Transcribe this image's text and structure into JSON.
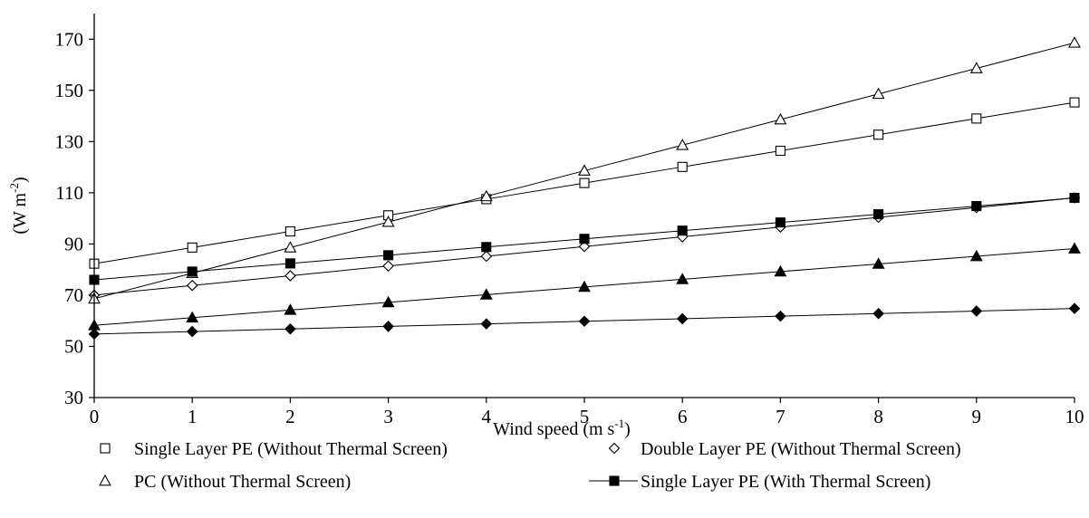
{
  "chart_data": {
    "type": "line",
    "xlabel": {
      "text": "Wind speed (m s",
      "sup": "-1",
      "suffix": ")"
    },
    "ylabel": {
      "text": "(W m",
      "sup": "-2",
      "suffix": ")"
    },
    "x": [
      0,
      1,
      2,
      3,
      4,
      5,
      6,
      7,
      8,
      9,
      10
    ],
    "xlim": [
      0,
      10
    ],
    "ylim": [
      30,
      180
    ],
    "xticks": [
      "0",
      "1",
      "2",
      "3",
      "4",
      "5",
      "6",
      "7",
      "8",
      "9",
      "10"
    ],
    "yticks": [
      30,
      50,
      70,
      90,
      110,
      130,
      150,
      170
    ],
    "yticklabels": [
      "30",
      "50",
      "70",
      "90",
      "110",
      "130",
      "150",
      "170"
    ],
    "grid": false,
    "legend_position": "bottom",
    "series": [
      {
        "name": "Single Layer PE (Without Thermal Screen)",
        "marker": "square-open",
        "values": [
          82.3,
          88.6,
          94.9,
          101.2,
          107.5,
          113.8,
          120.1,
          126.4,
          132.7,
          139.0,
          145.3
        ]
      },
      {
        "name": "Double Layer PE (Without Thermal Screen)",
        "marker": "diamond-open",
        "values": [
          70.0,
          73.8,
          77.6,
          81.4,
          85.2,
          89.0,
          92.8,
          96.6,
          100.4,
          104.2,
          108.0
        ]
      },
      {
        "name": "PC (Without Thermal Screen)",
        "marker": "triangle-open",
        "values": [
          68.6,
          78.6,
          88.6,
          98.6,
          108.6,
          118.6,
          128.6,
          138.6,
          148.6,
          158.6,
          168.6
        ]
      },
      {
        "name": "Single Layer PE (With Thermal Screen)",
        "marker": "square-filled",
        "values": [
          76.0,
          79.2,
          82.4,
          85.6,
          88.8,
          92.0,
          95.2,
          98.4,
          101.6,
          104.8,
          108.0
        ]
      },
      {
        "name": "",
        "marker": "triangle-filled",
        "values": [
          58.2,
          61.2,
          64.2,
          67.2,
          70.2,
          73.2,
          76.2,
          79.2,
          82.2,
          85.2,
          88.2
        ]
      },
      {
        "name": "",
        "marker": "diamond-filled",
        "values": [
          54.8,
          55.8,
          56.8,
          57.8,
          58.8,
          59.8,
          60.8,
          61.8,
          62.8,
          63.8,
          64.8
        ]
      }
    ],
    "legend": [
      {
        "label": "Single Layer PE (Without Thermal Screen)",
        "marker": "square-open",
        "line": false
      },
      {
        "label": "Double Layer PE (Without Thermal Screen)",
        "marker": "diamond-open",
        "line": false
      },
      {
        "label": "PC (Without Thermal Screen)",
        "marker": "triangle-open",
        "line": false
      },
      {
        "label": "Single Layer PE (With Thermal Screen)",
        "marker": "square-filled",
        "line": true
      }
    ]
  }
}
